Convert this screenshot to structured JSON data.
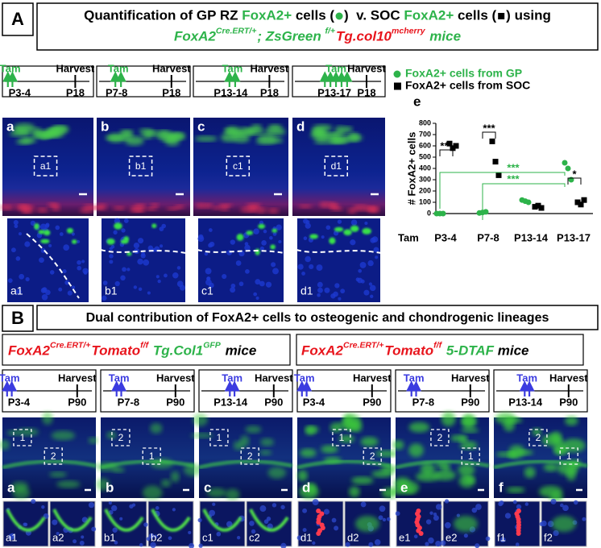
{
  "panel_a": {
    "label": "A",
    "title_line1": [
      "Quantification of GP RZ ",
      "FoxA2+",
      " cells (",
      ")  v. SOC ",
      "FoxA2+",
      " cells (",
      ") using"
    ],
    "title_line2": [
      "FoxA2",
      "Cre.ERT/+",
      "; ZsGreen ",
      "f/+",
      "Tg.col10",
      "mcherry",
      " mice"
    ],
    "timelines": [
      {
        "tam": "Tam",
        "harvest": "Harvest",
        "start": "P3-4",
        "end": "P18"
      },
      {
        "tam": "Tam",
        "harvest": "Harvest",
        "start": "P7-8",
        "end": "P18"
      },
      {
        "tam": "Tam",
        "harvest": "Harvest",
        "start": "P13-14",
        "end": "P18"
      },
      {
        "tam": "Tam",
        "harvest": "Harvest",
        "start": "P13-17",
        "end": "P18"
      }
    ],
    "images": [
      {
        "label": "a",
        "box": "a1",
        "inset": "a1"
      },
      {
        "label": "b",
        "box": "b1",
        "inset": "b1"
      },
      {
        "label": "c",
        "box": "c1",
        "inset": "c1"
      },
      {
        "label": "d",
        "box": "d1",
        "inset": "d1"
      }
    ]
  },
  "chart_data": {
    "type": "scatter",
    "panel_label": "e",
    "y_label": "# FoxA2+ cells",
    "x_label": "Tam",
    "categories": [
      "P3-4",
      "P7-8",
      "P13-14",
      "P13-17"
    ],
    "series": [
      {
        "name": "FoxA2+ cells from GP",
        "color": "#2db34a",
        "marker": "circle",
        "values": [
          [
            0,
            0,
            0
          ],
          [
            5,
            10,
            15
          ],
          [
            120,
            110,
            100
          ],
          [
            450,
            400,
            300
          ]
        ]
      },
      {
        "name": "FoxA2+ cells from SOC",
        "color": "#000000",
        "marker": "square",
        "values": [
          [
            620,
            580,
            600
          ],
          [
            640,
            460,
            340
          ],
          [
            60,
            70,
            50
          ],
          [
            100,
            80,
            120
          ]
        ]
      }
    ],
    "ylim": [
      0,
      800
    ],
    "yticks": [
      0,
      100,
      200,
      300,
      400,
      500,
      600,
      700,
      800
    ],
    "annotations": [
      "***",
      "***",
      "***",
      "***",
      "*"
    ]
  },
  "panel_b": {
    "label": "B",
    "title": "Dual contribution of FoxA2+ cells to osteogenic and chondrogenic lineages",
    "genotypes": [
      [
        "FoxA2",
        "Cre.ERT/+",
        "Tomato",
        "f/f",
        " Tg.Col1",
        "GFP",
        " mice"
      ],
      [
        "FoxA2",
        "Cre.ERT/+",
        "Tomato",
        "f/f",
        " 5-DTAF",
        " mice"
      ]
    ],
    "timelines": [
      {
        "tam": "Tam",
        "harvest": "Harvest",
        "start": "P3-4",
        "end": "P90"
      },
      {
        "tam": "Tam",
        "harvest": "Harvest",
        "start": "P7-8",
        "end": "P90"
      },
      {
        "tam": "Tam",
        "harvest": "Harvest",
        "start": "P13-14",
        "end": "P90"
      },
      {
        "tam": "Tam",
        "harvest": "Harvest",
        "start": "P3-4",
        "end": "P90"
      },
      {
        "tam": "Tam",
        "harvest": "Harvest",
        "start": "P7-8",
        "end": "P90"
      },
      {
        "tam": "Tam",
        "harvest": "Harvest",
        "start": "P13-14",
        "end": "P90"
      }
    ],
    "images": [
      {
        "label": "a",
        "boxes": [
          "1",
          "2"
        ],
        "insets": [
          "a1",
          "a2"
        ]
      },
      {
        "label": "b",
        "boxes": [
          "2",
          "1"
        ],
        "insets": [
          "b1",
          "b2"
        ]
      },
      {
        "label": "c",
        "boxes": [
          "1",
          "2"
        ],
        "insets": [
          "c1",
          "c2"
        ]
      },
      {
        "label": "d",
        "boxes": [
          "1",
          "2"
        ],
        "insets": [
          "d1",
          "d2"
        ]
      },
      {
        "label": "e",
        "boxes": [
          "2",
          "1"
        ],
        "insets": [
          "e1",
          "e2"
        ]
      },
      {
        "label": "f",
        "boxes": [
          "2",
          "1"
        ],
        "insets": [
          "f1",
          "f2"
        ]
      }
    ]
  }
}
